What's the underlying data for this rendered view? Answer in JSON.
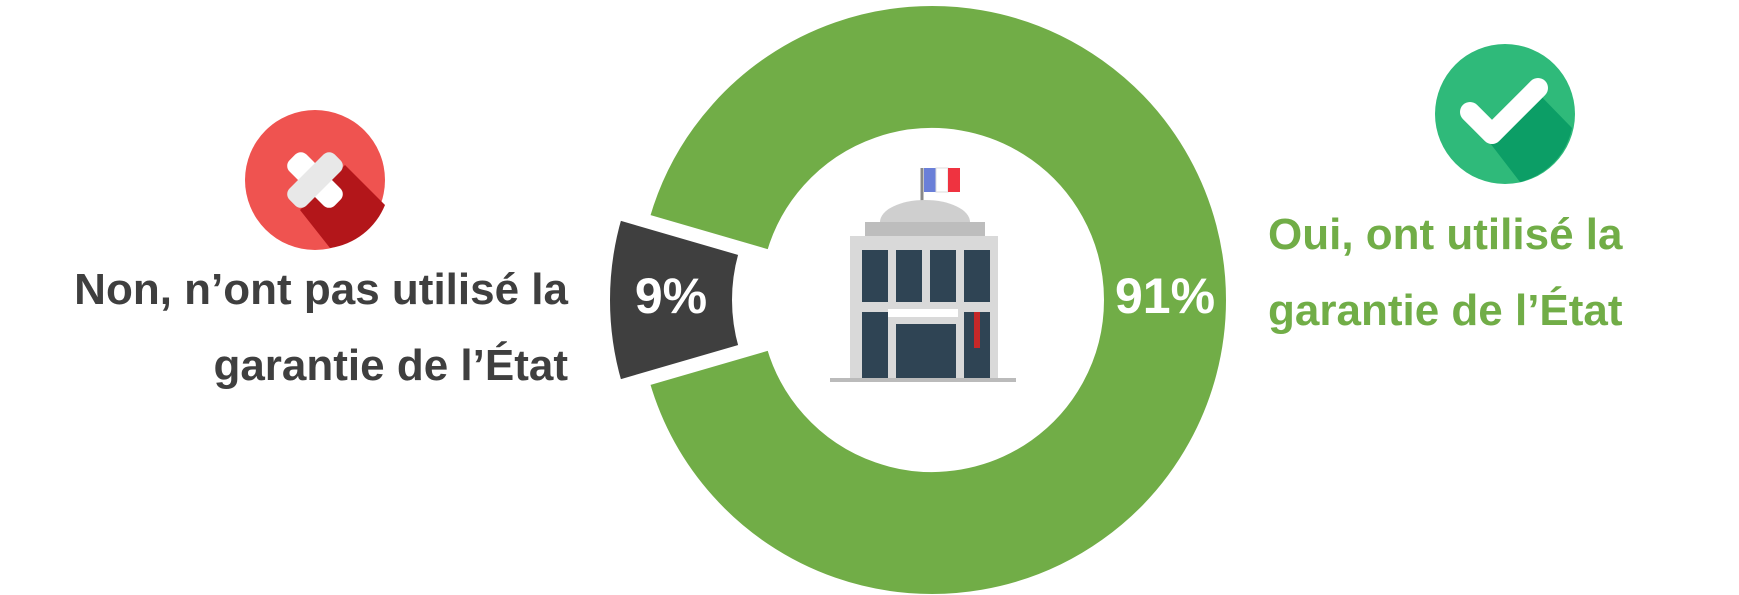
{
  "chart_data": {
    "type": "donut",
    "categories": [
      "Non, n’ont pas utilisé la garantie de l’État",
      "Oui, ont utilisé la garantie de l’État"
    ],
    "values": [
      9,
      91
    ],
    "value_labels": [
      "9%",
      "91%"
    ],
    "colors": [
      "#3f3f3f",
      "#71ad47"
    ]
  }
}
